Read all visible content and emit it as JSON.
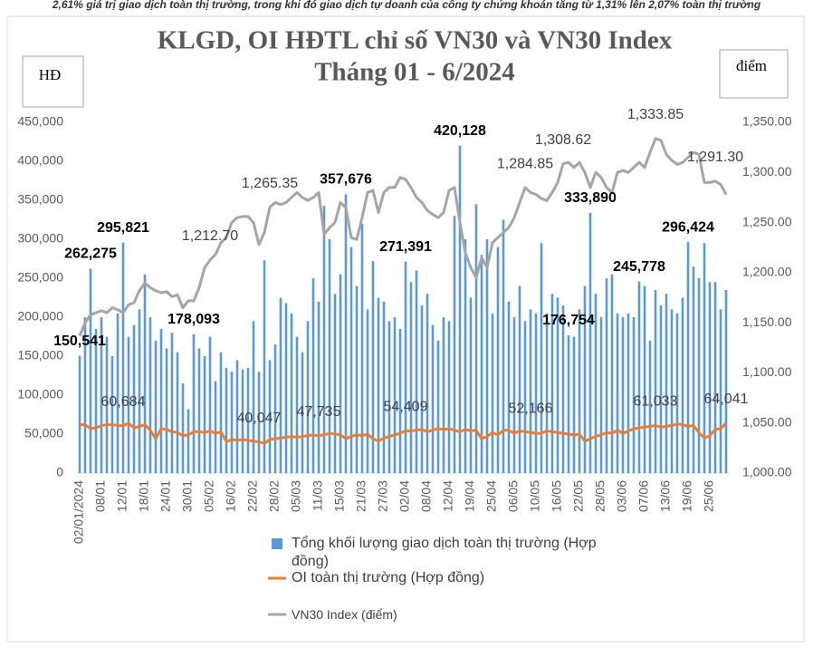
{
  "header_text": "2,61% giá trị giao dịch toàn thị trường, trong khi đó giao dịch tự doanh của công ty chứng khoán tăng từ 1,31% lên 2,07% toàn thị trường",
  "chart_data": {
    "type": "bar-line",
    "title": "KLGD, OI HĐTL chỉ số VN30 và VN30 Index",
    "subtitle": "Tháng 01 - 6/2024",
    "y_label": "HĐ",
    "y2_label": "điểm",
    "categories": [
      "02/01/2024",
      null,
      null,
      null,
      "08/01",
      null,
      null,
      null,
      "12/01",
      null,
      null,
      null,
      "18/01",
      null,
      null,
      null,
      "24/01",
      null,
      null,
      null,
      "30/01",
      null,
      null,
      null,
      "05/02",
      null,
      null,
      null,
      "16/02",
      null,
      null,
      null,
      "22/02",
      null,
      null,
      null,
      "28/02",
      null,
      null,
      null,
      "05/03",
      null,
      null,
      null,
      "11/03",
      null,
      null,
      null,
      "15/03",
      null,
      null,
      null,
      "21/03",
      null,
      null,
      null,
      "27/03",
      null,
      null,
      null,
      "02/04",
      null,
      null,
      null,
      "08/04",
      null,
      null,
      null,
      "12/04",
      null,
      null,
      null,
      "19/04",
      null,
      null,
      null,
      "25/04",
      null,
      null,
      null,
      "06/05",
      null,
      null,
      null,
      "10/05",
      null,
      null,
      null,
      "16/05",
      null,
      null,
      null,
      "22/05",
      null,
      null,
      null,
      "28/05",
      null,
      null,
      null,
      "03/06",
      null,
      null,
      null,
      "07/06",
      null,
      null,
      null,
      "13/06",
      null,
      null,
      null,
      "19/06",
      null,
      null,
      null,
      "25/06",
      null,
      null,
      null
    ],
    "ylim": [
      0,
      450000
    ],
    "yticks": [
      0,
      {
        "value": 50000,
        "label": "50,000"
      },
      {
        "value": 100000,
        "label": "100,000"
      },
      {
        "value": 150000,
        "label": "150,000"
      },
      {
        "value": 200000,
        "label": "200,000"
      },
      {
        "value": 250000,
        "label": "250,000"
      },
      {
        "value": 300000,
        "label": "300,000"
      },
      {
        "value": 350000,
        "label": "350,000"
      },
      {
        "value": 400000,
        "label": "400,000"
      },
      {
        "value": 450000,
        "label": "450,000"
      }
    ],
    "y2lim": [
      1000,
      1350
    ],
    "y2ticks": [
      {
        "value": 1000,
        "label": "1,000.00"
      },
      {
        "value": 1050,
        "label": "1,050.00"
      },
      {
        "value": 1100,
        "label": "1,100.00"
      },
      {
        "value": 1150,
        "label": "1,150.00"
      },
      {
        "value": 1200,
        "label": "1,200.00"
      },
      {
        "value": 1250,
        "label": "1,250.00"
      },
      {
        "value": 1300,
        "label": "1,300.00"
      },
      {
        "value": 1350,
        "label": "1,350.00"
      }
    ],
    "series": [
      {
        "name": "Tổng khối lượng giao dịch toàn thị trường (Hợp đồng)",
        "type": "bar",
        "color": "#5b9bd5",
        "values": [
          150541,
          200000,
          262275,
          185000,
          200000,
          175000,
          150000,
          205000,
          295821,
          175000,
          190000,
          210000,
          255000,
          200000,
          170000,
          185000,
          160000,
          180000,
          155000,
          115000,
          82000,
          178093,
          160000,
          150000,
          175000,
          118000,
          155000,
          135000,
          130000,
          145000,
          133000,
          135000,
          195000,
          130000,
          273000,
          145000,
          165000,
          225000,
          218000,
          205000,
          175000,
          155000,
          195000,
          250000,
          220000,
          343000,
          300000,
          230000,
          255000,
          357676,
          290000,
          240000,
          320000,
          210000,
          272000,
          225000,
          220000,
          195000,
          200000,
          185000,
          271391,
          245000,
          260000,
          215000,
          230000,
          190000,
          170000,
          200000,
          195000,
          330000,
          420128,
          300000,
          225000,
          345000,
          280000,
          300000,
          205000,
          290000,
          325000,
          220000,
          200000,
          240000,
          195000,
          210000,
          205000,
          295000,
          205000,
          230000,
          225000,
          215000,
          176754,
          175000,
          210000,
          240000,
          333890,
          230000,
          200000,
          250000,
          255000,
          205000,
          200000,
          205000,
          200000,
          245778,
          240000,
          170000,
          235000,
          215000,
          230000,
          210000,
          205000,
          225000,
          296424,
          265000,
          250000,
          295000,
          245000,
          245000,
          210000,
          235000
        ],
        "value_labels": [
          "150,541",
          null,
          "262,275",
          null,
          null,
          null,
          null,
          null,
          "295,821",
          null,
          null,
          null,
          null,
          null,
          null,
          null,
          null,
          null,
          null,
          null,
          null,
          "178,093",
          null,
          null,
          null,
          null,
          null,
          null,
          null,
          null,
          null,
          null,
          null,
          null,
          null,
          null,
          null,
          null,
          null,
          null,
          null,
          null,
          null,
          null,
          null,
          null,
          null,
          null,
          null,
          "357,676",
          null,
          null,
          null,
          null,
          null,
          null,
          null,
          null,
          null,
          null,
          "271,391",
          null,
          null,
          null,
          null,
          null,
          null,
          null,
          null,
          null,
          "420,128",
          null,
          null,
          null,
          null,
          null,
          null,
          null,
          null,
          null,
          null,
          null,
          null,
          null,
          null,
          null,
          null,
          null,
          null,
          null,
          "176,754",
          null,
          null,
          null,
          "333,890",
          null,
          null,
          null,
          null,
          null,
          null,
          null,
          null,
          "245,778",
          null,
          null,
          null,
          null,
          null,
          null,
          null,
          null,
          "296,424",
          null,
          null,
          null,
          null,
          null,
          null,
          null
        ]
      },
      {
        "name": "OI toàn thị trường (Hợp đồng)",
        "type": "line",
        "color": "#ed7d31",
        "values": [
          62000,
          62000,
          57000,
          58000,
          61000,
          62000,
          62000,
          61000,
          60684,
          64000,
          58000,
          60000,
          62000,
          55000,
          44000,
          57000,
          56000,
          53000,
          52000,
          48000,
          49000,
          53000,
          53000,
          52000,
          54000,
          51000,
          53000,
          40000,
          43000,
          42000,
          43000,
          42000,
          41000,
          40047,
          38000,
          43000,
          44000,
          45000,
          46000,
          47000,
          46000,
          47000,
          48000,
          49000,
          47735,
          49000,
          51000,
          50000,
          49000,
          44000,
          47000,
          49000,
          48000,
          50000,
          44000,
          41000,
          45000,
          47000,
          49000,
          51000,
          54409,
          54000,
          55000,
          56000,
          53000,
          55000,
          57000,
          56000,
          57000,
          55000,
          53000,
          56000,
          54000,
          55000,
          44000,
          47000,
          52000,
          49000,
          55000,
          55000,
          51000,
          54000,
          53000,
          52166,
          51000,
          51000,
          54000,
          53000,
          52000,
          51000,
          50000,
          49000,
          50000,
          41000,
          44000,
          47000,
          49000,
          52000,
          51000,
          55000,
          51000,
          54000,
          57000,
          58000,
          59000,
          60000,
          61033,
          59000,
          60000,
          61000,
          63000,
          62000,
          60000,
          61000,
          52000,
          45000,
          48000,
          56000,
          57000,
          64041
        ],
        "value_labels": [
          null,
          null,
          null,
          null,
          null,
          null,
          null,
          null,
          "60,684",
          null,
          null,
          null,
          null,
          null,
          null,
          null,
          null,
          null,
          null,
          null,
          null,
          null,
          null,
          null,
          null,
          null,
          null,
          null,
          null,
          null,
          null,
          null,
          null,
          "40,047",
          null,
          null,
          null,
          null,
          null,
          null,
          null,
          null,
          null,
          null,
          "47,735",
          null,
          null,
          null,
          null,
          null,
          null,
          null,
          null,
          null,
          null,
          null,
          null,
          null,
          null,
          null,
          "54,409",
          null,
          null,
          null,
          null,
          null,
          null,
          null,
          null,
          null,
          null,
          null,
          null,
          null,
          null,
          null,
          null,
          null,
          null,
          null,
          null,
          null,
          null,
          "52,166",
          null,
          null,
          null,
          null,
          null,
          null,
          null,
          null,
          null,
          null,
          null,
          null,
          null,
          null,
          null,
          null,
          null,
          null,
          null,
          null,
          null,
          null,
          "61,033",
          null,
          null,
          null,
          null,
          null,
          null,
          null,
          null,
          null,
          null,
          null,
          null,
          "64,041"
        ]
      },
      {
        "name": "VN30 Index (điểm)",
        "type": "line",
        "axis": "y2",
        "color": "#a5a5a5",
        "values": [
          1137,
          1150,
          1158,
          1160,
          1162,
          1160,
          1165,
          1163,
          1160,
          1168,
          1170,
          1182,
          1190,
          1185,
          1182,
          1180,
          1181,
          1176,
          1178,
          1165,
          1172,
          1172,
          1185,
          1205,
          1212.7,
          1218,
          1230,
          1235,
          1250,
          1255,
          1256,
          1256,
          1250,
          1228,
          1240,
          1265.35,
          1270,
          1268,
          1270,
          1275,
          1280,
          1275,
          1272,
          1275,
          1280,
          1238,
          1245,
          1250,
          1270,
          1265,
          1235,
          1233,
          1255,
          1280,
          1282,
          1260,
          1280,
          1285,
          1285,
          1295,
          1293,
          1285,
          1275,
          1270,
          1262,
          1258,
          1255,
          1260,
          1282,
          1285,
          1250,
          1220,
          1205,
          1195,
          1215,
          1205,
          1230,
          1235,
          1240,
          1245,
          1255,
          1270,
          1284.85,
          1280,
          1278,
          1274,
          1272,
          1280,
          1290,
          1308.62,
          1310,
          1305,
          1310,
          1300,
          1285,
          1300,
          1295,
          1285,
          1280,
          1300,
          1302,
          1300,
          1305,
          1310,
          1305,
          1320,
          1333.85,
          1332,
          1318,
          1312,
          1308,
          1310,
          1315,
          1320,
          1318,
          1290,
          1290,
          1291.3,
          1288,
          1278
        ],
        "value_labels": [
          null,
          null,
          null,
          null,
          null,
          null,
          null,
          null,
          null,
          null,
          null,
          null,
          null,
          null,
          null,
          null,
          null,
          null,
          null,
          null,
          null,
          null,
          null,
          null,
          "1,212.70",
          null,
          null,
          null,
          null,
          null,
          null,
          null,
          null,
          null,
          null,
          "1,265.35",
          null,
          null,
          null,
          null,
          null,
          null,
          null,
          null,
          null,
          null,
          null,
          null,
          null,
          null,
          null,
          null,
          null,
          null,
          null,
          null,
          null,
          null,
          null,
          null,
          null,
          null,
          null,
          null,
          null,
          null,
          null,
          null,
          null,
          null,
          null,
          null,
          null,
          null,
          null,
          null,
          null,
          null,
          null,
          null,
          null,
          null,
          "1,284.85",
          null,
          null,
          null,
          null,
          null,
          null,
          "1,308.62",
          null,
          null,
          null,
          null,
          null,
          null,
          null,
          null,
          null,
          null,
          null,
          null,
          null,
          null,
          null,
          null,
          "1,333.85",
          null,
          null,
          null,
          null,
          null,
          null,
          null,
          null,
          null,
          null,
          "1,291.30",
          null,
          null
        ]
      }
    ]
  }
}
